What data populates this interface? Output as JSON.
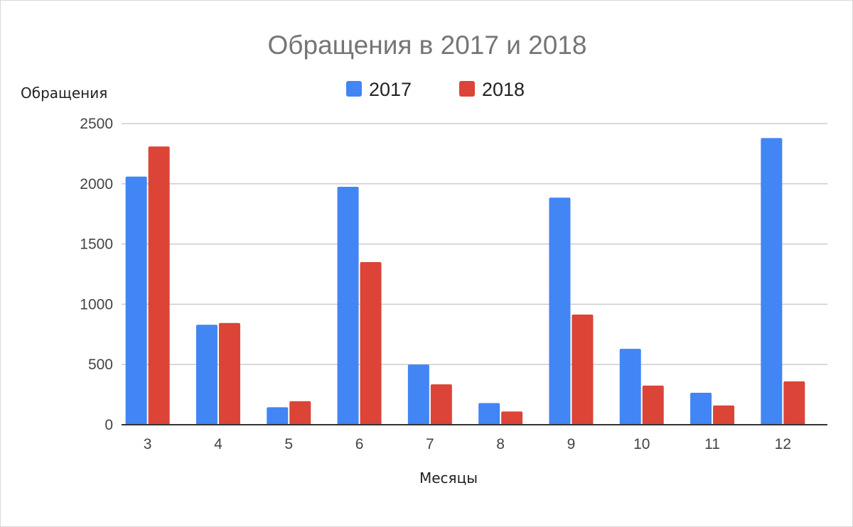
{
  "chart_data": {
    "type": "bar",
    "title": "Обращения в 2017 и 2018",
    "xlabel": "Месяцы",
    "ylabel": "Обращения",
    "categories": [
      "3",
      "4",
      "5",
      "6",
      "7",
      "8",
      "9",
      "10",
      "11",
      "12"
    ],
    "series": [
      {
        "name": "2017",
        "color": "#4285f4",
        "values": [
          2060,
          830,
          145,
          1975,
          500,
          180,
          1885,
          630,
          265,
          2380
        ]
      },
      {
        "name": "2018",
        "color": "#db4437",
        "values": [
          2310,
          845,
          195,
          1350,
          335,
          110,
          915,
          325,
          160,
          360
        ]
      }
    ],
    "ylim": [
      0,
      2500
    ],
    "yticks": [
      0,
      500,
      1000,
      1500,
      2000,
      2500
    ],
    "grid": true,
    "legend_position": "top"
  }
}
